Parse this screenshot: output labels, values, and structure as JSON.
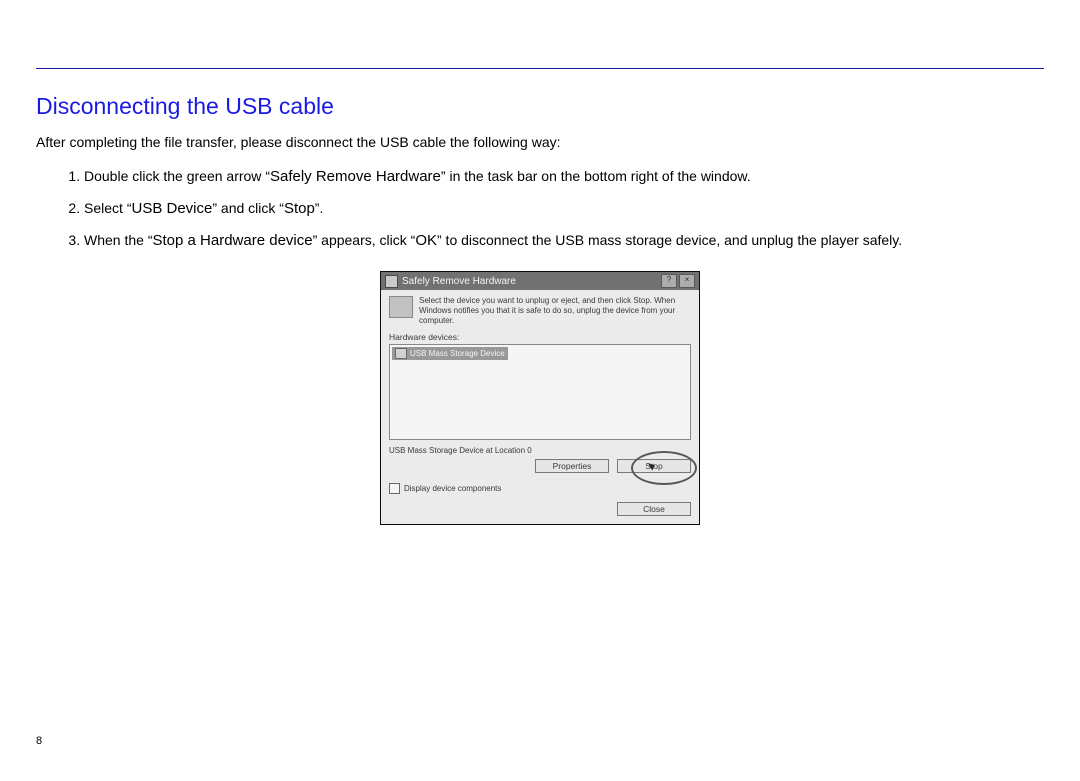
{
  "page_number": "8",
  "section_title": "Disconnecting the USB cable",
  "intro": "After completing the file transfer, please disconnect the USB cable the following way:",
  "steps": [
    {
      "pre": "Double click the green arrow ",
      "q1": "“",
      "term1": "Safely Remove Hardware",
      "q1c": "”",
      "post": " in the task bar on the bottom right of the window."
    },
    {
      "pre": "Select ",
      "q1": "“",
      "term1": "USB Device",
      "q1c": "”",
      "mid": " and click ",
      "q2": "“",
      "term2": "Stop",
      "q2c": "”",
      "post": "."
    },
    {
      "pre": "When the ",
      "q1": "“",
      "term1": "Stop a Hardware device",
      "q1c": "”",
      "mid": " appears, click ",
      "q2": "“",
      "term2": "OK",
      "q2c": "”",
      "post": " to disconnect the USB mass storage device, and unplug the player safely."
    }
  ],
  "dialog": {
    "title": "Safely Remove Hardware",
    "help_btn": "?",
    "close_btn": "×",
    "instruction": "Select the device you want to unplug or eject, and then click Stop. When Windows notifies you that it is safe to do so, unplug the device from your computer.",
    "hardware_label": "Hardware devices:",
    "device_item": "USB Mass Storage Device",
    "device_desc": "USB Mass Storage Device at Location 0",
    "properties_btn": "Properties",
    "stop_btn": "Stop",
    "checkbox_label": "Display device components",
    "close_dialog_btn": "Close"
  },
  "colors": {
    "rule": "#1a1a9a",
    "heading": "#1a1ae6",
    "text": "#000000",
    "dialog_titlebar": "#707070",
    "dialog_bg": "#f4f4f4"
  }
}
